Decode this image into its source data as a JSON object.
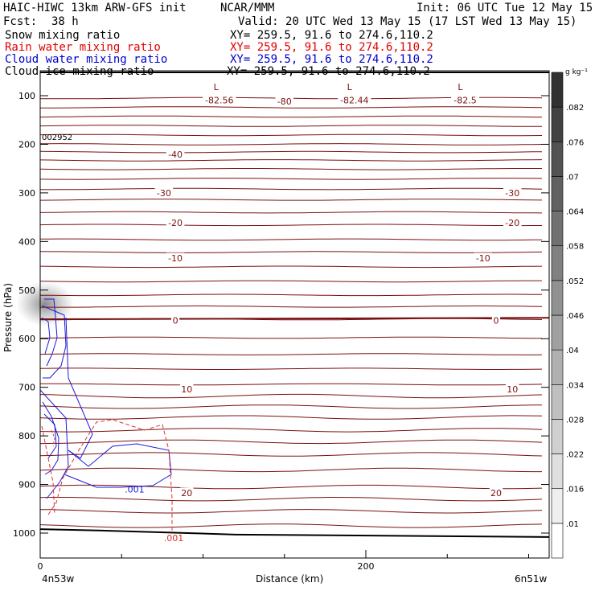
{
  "header": {
    "model_title": "HAIC-HIWC 13km ARW-GFS init",
    "org": "NCAR/MMM",
    "init": "Init: 06 UTC Tue 12 May 15",
    "fcst_label": "Fcst:",
    "fcst_value": "38 h",
    "valid": "Valid: 20 UTC Wed 13 May 15 (17 LST Wed 13 May 15)"
  },
  "fields": [
    {
      "name": "Snow mixing ratio",
      "xy": "XY= 259.5, 91.6 to 274.6,110.2",
      "color": "#000000"
    },
    {
      "name": "Rain water mixing ratio",
      "xy": "XY= 259.5, 91.6 to 274.6,110.2",
      "color": "#e00000"
    },
    {
      "name": "Cloud water mixing ratio",
      "xy": "XY= 259.5, 91.6 to 274.6,110.2",
      "color": "#0000cc"
    },
    {
      "name": "Cloud ice mixing ratio",
      "xy": "XY= 259.5, 91.6 to 274.6,110.2",
      "color": "#000000"
    }
  ],
  "chart_data": {
    "type": "cross-section",
    "ylabel": "Pressure (hPa)",
    "xlabel": "Distance (km)",
    "x_start_label": "4n53w",
    "x_end_label": "6n51w",
    "xlim": [
      0,
      315
    ],
    "ylim": [
      1050,
      50
    ],
    "y_scale": "pressure",
    "x_ticks": [
      {
        "value": 0,
        "label": "0"
      },
      {
        "value": 200,
        "label": "200"
      }
    ],
    "x_minor_ticks": [
      50,
      100,
      150,
      250,
      300
    ],
    "y_ticks": [
      {
        "value": 100,
        "label": "100"
      },
      {
        "value": 200,
        "label": "200"
      },
      {
        "value": 300,
        "label": "300"
      },
      {
        "value": 400,
        "label": "400"
      },
      {
        "value": 500,
        "label": "500"
      },
      {
        "value": 600,
        "label": "600"
      },
      {
        "value": 700,
        "label": "700"
      },
      {
        "value": 800,
        "label": "800"
      },
      {
        "value": 900,
        "label": "900"
      },
      {
        "value": 1000,
        "label": "1000"
      }
    ],
    "corner_label": "002952",
    "temperature_contours": {
      "units": "°C",
      "color": "#7a1010",
      "levels": [
        {
          "value": -82.56,
          "label": "-82.56",
          "x": 110,
          "p": 110
        },
        {
          "value": -80,
          "label": "-80",
          "x": 150,
          "p": 112
        },
        {
          "value": -82.44,
          "label": "-82.44",
          "x": 193,
          "p": 110
        },
        {
          "value": -82.5,
          "label": "-82.5",
          "x": 261,
          "p": 110
        },
        {
          "value": -40,
          "label": "-40",
          "x": 83,
          "p": 222
        },
        {
          "value": -30,
          "label": "-30",
          "x": 76,
          "p": 301
        },
        {
          "value": -30,
          "label": "-30",
          "x": 290,
          "p": 301
        },
        {
          "value": -20,
          "label": "-20",
          "x": 83,
          "p": 362
        },
        {
          "value": -20,
          "label": "-20",
          "x": 290,
          "p": 362
        },
        {
          "value": -10,
          "label": "-10",
          "x": 83,
          "p": 435
        },
        {
          "value": -10,
          "label": "-10",
          "x": 272,
          "p": 435
        },
        {
          "value": 0,
          "label": "0",
          "x": 83,
          "p": 563
        },
        {
          "value": 0,
          "label": "0",
          "x": 280,
          "p": 563
        },
        {
          "value": 10,
          "label": "10",
          "x": 90,
          "p": 705
        },
        {
          "value": 10,
          "label": "10",
          "x": 290,
          "p": 705
        },
        {
          "value": 20,
          "label": "20",
          "x": 90,
          "p": 918
        },
        {
          "value": 20,
          "label": "20",
          "x": 280,
          "p": 918
        }
      ],
      "low_markers": [
        {
          "label": "L",
          "x": 108,
          "p": 82
        },
        {
          "label": "L",
          "x": 190,
          "p": 82
        },
        {
          "label": "L",
          "x": 258,
          "p": 82
        }
      ]
    },
    "cloud_water_label": {
      "label": ".001",
      "x": 58,
      "p": 910
    },
    "rain_water_label": {
      "label": ".001",
      "x": 82,
      "p": 1010
    },
    "colorbar": {
      "units": "g kg⁻¹",
      "levels": [
        ".01",
        ".016",
        ".022",
        ".028",
        ".034",
        ".04",
        ".046",
        ".052",
        ".058",
        ".064",
        ".07",
        ".076",
        ".082"
      ]
    }
  }
}
